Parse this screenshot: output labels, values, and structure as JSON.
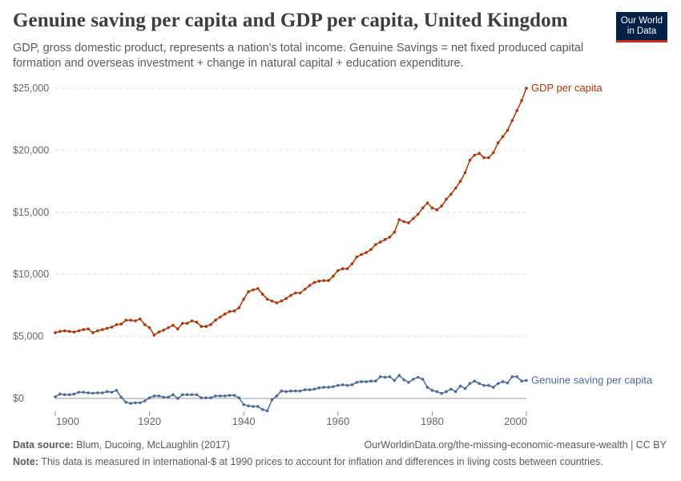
{
  "header": {
    "title": "Genuine saving per capita and GDP per capita, United Kingdom",
    "subtitle": "GDP, gross domestic product, represents a nation's total income. Genuine Savings = net fixed produced capital formation and overseas investment + change in natural capital + education expenditure.",
    "logo": "Our World in Data"
  },
  "footer": {
    "source_label": "Data source:",
    "source": "Blum, Ducoing, McLaughlin (2017)",
    "url": "OurWorldinData.org/the-missing-economic-measure-wealth | CC BY",
    "note_label": "Note:",
    "note": "This data is measured in international-$ at 1990 prices to account for inflation and differences in living costs between countries."
  },
  "chart_data": {
    "type": "line",
    "x_start": 1900,
    "x_end": 2000,
    "xlim": [
      1900,
      2000
    ],
    "ylim": [
      0,
      25000
    ],
    "x_ticks": [
      "1900",
      "1920",
      "1940",
      "1960",
      "1980",
      "2000"
    ],
    "y_ticks": [
      "$0",
      "$5,000",
      "$10,000",
      "$15,000",
      "$20,000",
      "$25,000"
    ],
    "grid": "horizontal dashed",
    "legend": "inline labels at line ends (right)",
    "series": [
      {
        "name": "GDP per capita",
        "color": "#b13507",
        "values": [
          5300,
          5400,
          5450,
          5400,
          5350,
          5450,
          5550,
          5600,
          5300,
          5450,
          5550,
          5650,
          5750,
          5950,
          6000,
          6300,
          6300,
          6250,
          6400,
          5950,
          5700,
          5100,
          5350,
          5500,
          5700,
          5900,
          5600,
          6050,
          6050,
          6250,
          6150,
          5800,
          5800,
          5950,
          6300,
          6550,
          6800,
          7000,
          7050,
          7300,
          8000,
          8600,
          8750,
          8850,
          8400,
          8000,
          7850,
          7700,
          7850,
          8050,
          8300,
          8500,
          8500,
          8800,
          9100,
          9350,
          9450,
          9500,
          9500,
          9850,
          10300,
          10450,
          10450,
          10850,
          11400,
          11600,
          11750,
          12000,
          12400,
          12600,
          12800,
          13000,
          13400,
          14400,
          14250,
          14150,
          14500,
          14850,
          15350,
          15750,
          15350,
          15200,
          15500,
          16050,
          16450,
          16950,
          17500,
          18200,
          19200,
          19600,
          19750,
          19400,
          19400,
          19800,
          20600,
          21100,
          21600,
          22400,
          23200,
          24000,
          25000
        ]
      },
      {
        "name": "Genuine saving per capita",
        "color": "#4c6a9c",
        "values": [
          130,
          350,
          300,
          300,
          350,
          500,
          500,
          450,
          420,
          450,
          450,
          550,
          500,
          650,
          100,
          -300,
          -400,
          -350,
          -350,
          -200,
          50,
          200,
          200,
          100,
          100,
          300,
          0,
          300,
          300,
          300,
          300,
          50,
          50,
          50,
          200,
          200,
          200,
          250,
          250,
          50,
          -500,
          -600,
          -650,
          -650,
          -900,
          -1000,
          -100,
          200,
          600,
          550,
          600,
          600,
          600,
          700,
          700,
          750,
          850,
          900,
          900,
          950,
          1050,
          1100,
          1050,
          1100,
          1300,
          1350,
          1350,
          1400,
          1400,
          1750,
          1700,
          1750,
          1450,
          1850,
          1500,
          1300,
          1550,
          1700,
          1550,
          900,
          650,
          550,
          400,
          550,
          750,
          550,
          1000,
          800,
          1200,
          1400,
          1200,
          1050,
          1050,
          900,
          1200,
          1350,
          1250,
          1750,
          1750,
          1400,
          1450
        ]
      }
    ]
  }
}
